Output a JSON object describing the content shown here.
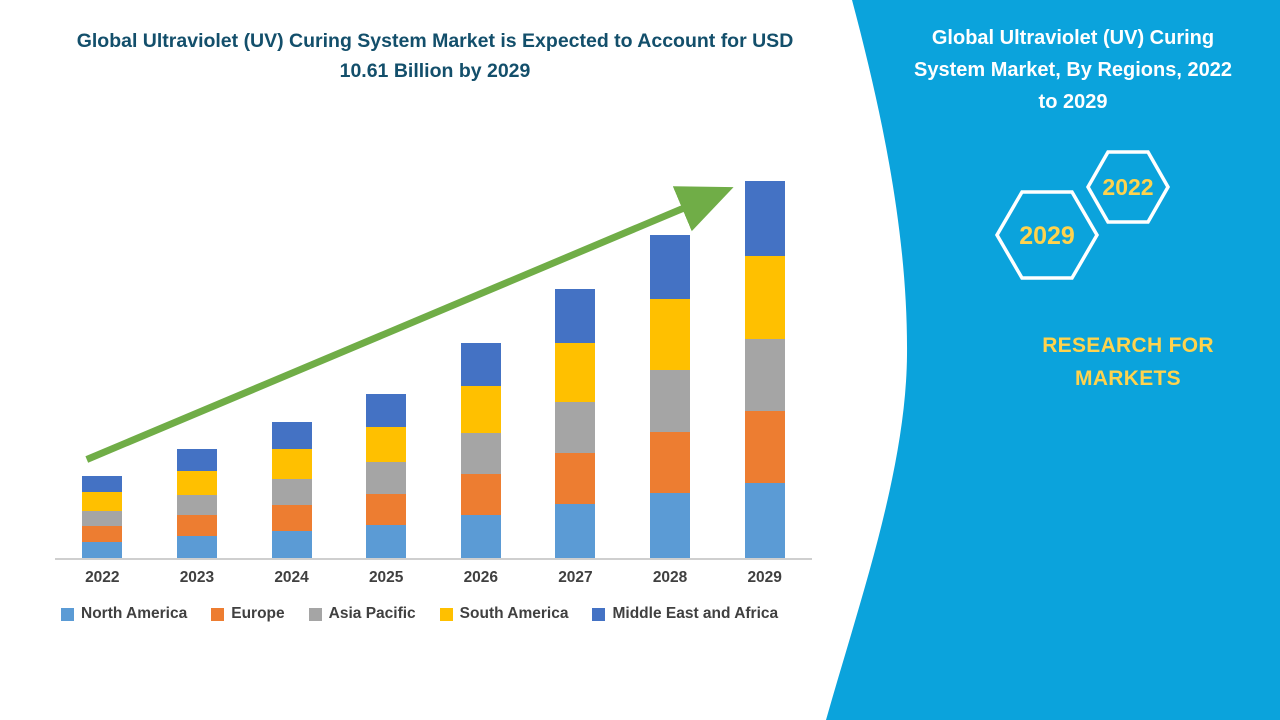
{
  "colors": {
    "title": "#134F6B",
    "axis_label": "#404040",
    "axis_line": "#CFCFCF",
    "panel_blue": "#0BA3DC",
    "panel_text": "#FFFFFF",
    "accent_yellow": "#FFD34D",
    "arrow_green": "#70AD47"
  },
  "chart_data": {
    "type": "bar",
    "stacked": true,
    "title": "Global Ultraviolet (UV) Curing System Market is Expected to Account for USD 10.61 Billion by 2029",
    "categories": [
      "2022",
      "2023",
      "2024",
      "2025",
      "2026",
      "2027",
      "2028",
      "2029"
    ],
    "series": [
      {
        "name": "North America",
        "color": "#5B9BD5",
        "values": [
          0.46,
          0.62,
          0.77,
          0.93,
          1.22,
          1.52,
          1.82,
          2.12
        ]
      },
      {
        "name": "Europe",
        "color": "#ED7D31",
        "values": [
          0.44,
          0.58,
          0.73,
          0.88,
          1.15,
          1.44,
          1.73,
          2.02
        ]
      },
      {
        "name": "Asia Pacific",
        "color": "#A5A5A5",
        "values": [
          0.44,
          0.58,
          0.73,
          0.88,
          1.15,
          1.44,
          1.73,
          2.02
        ]
      },
      {
        "name": "South America",
        "color": "#FFC000",
        "values": [
          0.51,
          0.68,
          0.84,
          1.01,
          1.33,
          1.66,
          2.0,
          2.33
        ]
      },
      {
        "name": "Middle East and Africa",
        "color": "#4472C4",
        "values": [
          0.46,
          0.61,
          0.76,
          0.91,
          1.2,
          1.51,
          1.81,
          2.12
        ]
      }
    ],
    "totals": [
      2.31,
      3.07,
      3.83,
      4.61,
      6.05,
      7.57,
      9.09,
      10.61
    ],
    "unit": "USD Billion",
    "ylim": [
      0,
      10.61
    ],
    "xlabel": "",
    "ylabel": "",
    "grid": false,
    "legend_position": "bottom",
    "annotations": [
      "upward trend arrow"
    ]
  },
  "right_panel": {
    "heading": "Global Ultraviolet (UV) Curing System Market, By Regions, 2022 to 2029",
    "hexagon_top_label": "2022",
    "hexagon_bottom_label": "2029",
    "brand": "RESEARCH FOR MARKETS"
  }
}
